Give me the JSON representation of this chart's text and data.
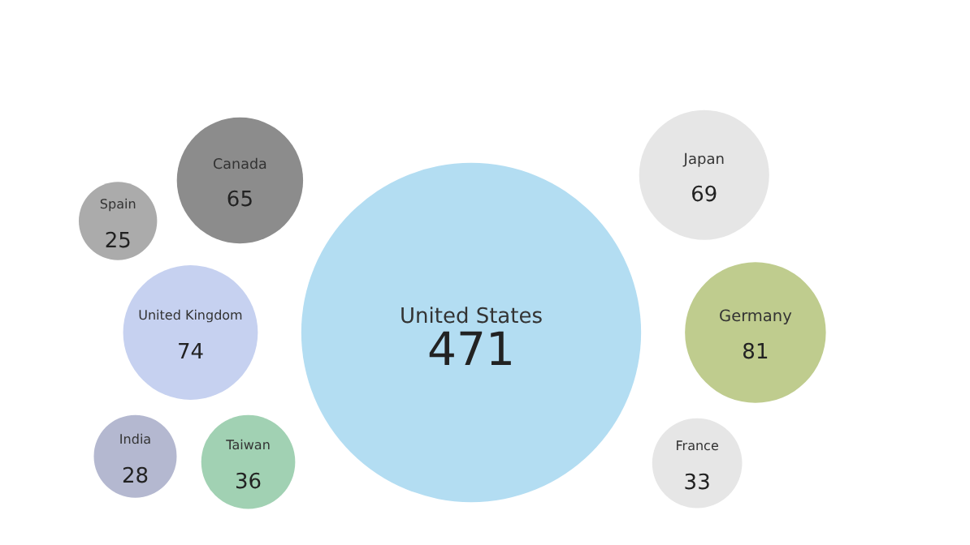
{
  "chart_data": {
    "type": "other",
    "categories": [
      "United States",
      "Germany",
      "United Kingdom",
      "Japan",
      "Taiwan",
      "Spain",
      "France",
      "India",
      "Canada"
    ],
    "values": [
      471,
      81,
      74,
      69,
      36,
      25,
      33,
      28,
      65
    ],
    "colors": [
      "#b3ddf2",
      "#bfcc8e",
      "#c6d1f0",
      "#e6e6e6",
      "#a1d1b3",
      "#ababab",
      "#e6e6e6",
      "#b4b8d0",
      "#8c8c8c"
    ],
    "data_labels": true
  }
}
